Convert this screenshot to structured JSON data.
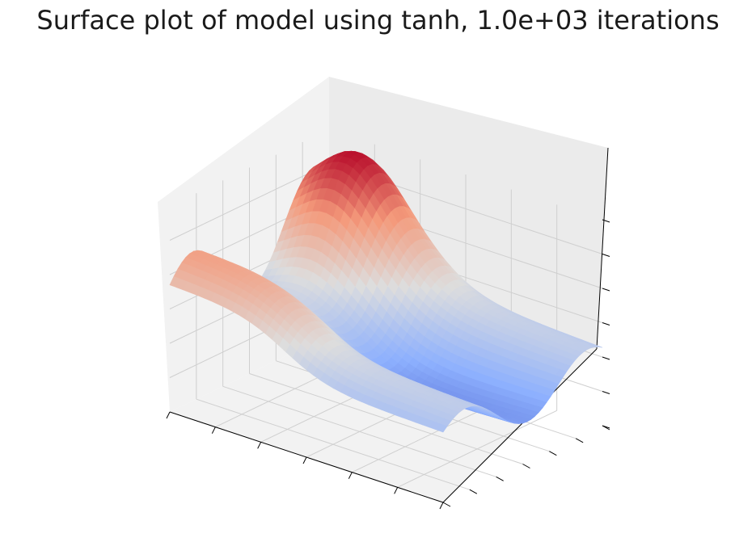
{
  "chart_data": {
    "type": "surface",
    "title": "Surface plot of model using tanh, 1.0e+03 iterations",
    "colormap": "coolwarm",
    "colormap_colors": [
      "#3b4cc0",
      "#8db0fe",
      "#dddddd",
      "#f49a7b",
      "#b40426"
    ],
    "grid": true,
    "tick_labels_shown": false,
    "x_range": [
      0,
      1
    ],
    "y_range": [
      0,
      1
    ],
    "z_range": [
      -1,
      1
    ],
    "surface": {
      "description": "model output z over (x, y) grid",
      "peak": {
        "x": 0.15,
        "y": 0.9,
        "z": 0.95
      },
      "minimum": {
        "x": 0.75,
        "y": 0.05,
        "z": -0.6
      }
    }
  }
}
